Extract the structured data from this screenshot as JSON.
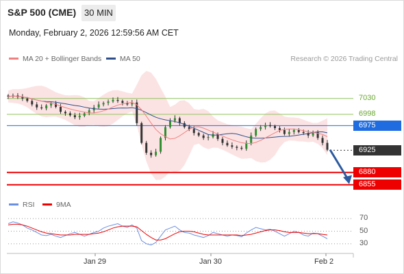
{
  "header": {
    "title": "S&P 500 (CME)",
    "timeframe": "30 MIN",
    "datetime": "Monday, February 2, 2026 12:59:56 AM CET"
  },
  "legend": {
    "ma20": "MA 20 + Bollinger Bands",
    "ma50": "MA 50",
    "credit": "Research © 2026 Trading Central"
  },
  "rsi_legend": {
    "rsi": "RSI",
    "ma": "9MA"
  },
  "colors": {
    "ma20": "#f08080",
    "ma50": "#2c4f8c",
    "bands_fill": "#fbdada",
    "resistance": "#8fc45a",
    "pivot": "#1e6ce0",
    "support": "#ee0000",
    "current": "#333333",
    "rsi": "#6a8fe0",
    "rsi_ma": "#ee0000"
  },
  "chart_data": {
    "type": "candlestick",
    "title": "S&P 500 (CME)",
    "timeframe": "30 MIN",
    "x_ticks": [
      "Jan 29",
      "Jan 30",
      "Feb 2"
    ],
    "y_range": [
      6838,
      7095
    ],
    "levels": [
      {
        "value": 7030,
        "label": "7030",
        "kind": "resistance"
      },
      {
        "value": 6998,
        "label": "6998",
        "kind": "resistance"
      },
      {
        "value": 6975,
        "label": "6975",
        "kind": "pivot"
      },
      {
        "value": 6925,
        "label": "6925",
        "kind": "current"
      },
      {
        "value": 6880,
        "label": "6880",
        "kind": "support"
      },
      {
        "value": 6855,
        "label": "6855",
        "kind": "support"
      }
    ],
    "price_path": [
      7034,
      7036,
      7033,
      7030,
      7025,
      7018,
      7012,
      7010,
      7016,
      7020,
      7013,
      7003,
      7000,
      6996,
      6992,
      6995,
      7000,
      7006,
      7012,
      7018,
      7021,
      7024,
      7027,
      7025,
      7021,
      7018,
      7022,
      6980,
      6940,
      6920,
      6915,
      6922,
      6950,
      6972,
      6985,
      6990,
      6980,
      6972,
      6968,
      6960,
      6955,
      6950,
      6952,
      6958,
      6948,
      6940,
      6935,
      6932,
      6930,
      6928,
      6940,
      6955,
      6968,
      6972,
      6976,
      6974,
      6970,
      6966,
      6958,
      6962,
      6966,
      6962,
      6960,
      6955,
      6962,
      6950,
      6940,
      6926
    ],
    "rsi": {
      "levels": [
        70,
        50,
        30
      ],
      "values": [
        62,
        65,
        63,
        60,
        55,
        52,
        48,
        44,
        43,
        45,
        42,
        40,
        43,
        46,
        48,
        45,
        42,
        45,
        48,
        50,
        55,
        58,
        60,
        62,
        58,
        56,
        60,
        55,
        35,
        30,
        28,
        32,
        42,
        52,
        55,
        58,
        52,
        48,
        47,
        44,
        42,
        40,
        43,
        48,
        46,
        44,
        42,
        44,
        43,
        41,
        47,
        52,
        56,
        54,
        52,
        53,
        50,
        46,
        42,
        46,
        50,
        48,
        44,
        42,
        47,
        46,
        42,
        38
      ],
      "ma": [
        60,
        61,
        61,
        60,
        58,
        55,
        52,
        49,
        47,
        46,
        45,
        44,
        44,
        44,
        45,
        45,
        45,
        45,
        46,
        47,
        49,
        52,
        55,
        57,
        58,
        58,
        58,
        57,
        51,
        45,
        40,
        36,
        36,
        38,
        42,
        46,
        49,
        50,
        50,
        49,
        47,
        45,
        44,
        44,
        44,
        44,
        44,
        44,
        44,
        43,
        44,
        45,
        47,
        49,
        51,
        52,
        52,
        51,
        49,
        48,
        48,
        48,
        47,
        46,
        46,
        46,
        45,
        44
      ]
    }
  }
}
